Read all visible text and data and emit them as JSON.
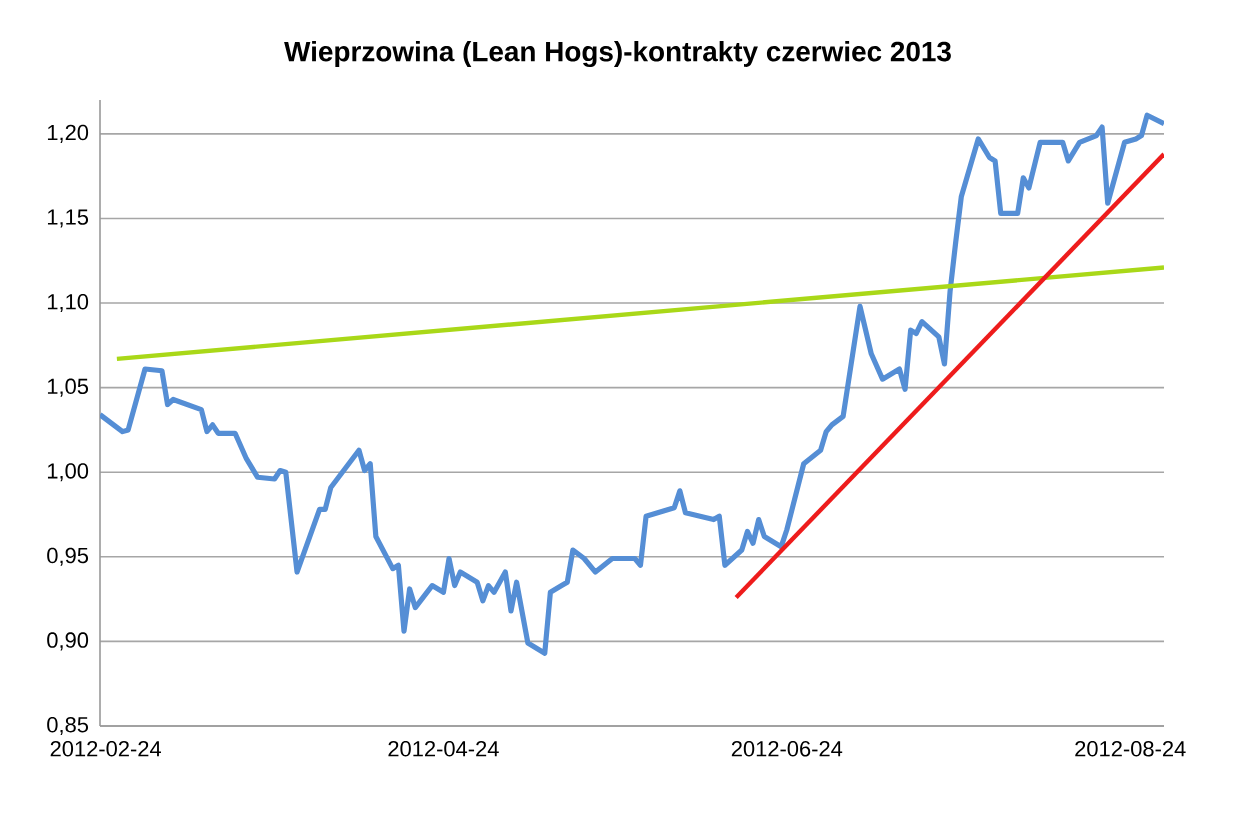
{
  "chart_data": {
    "type": "line",
    "title": "Wieprzowina (Lean Hogs)-kontrakty czerwiec 2013",
    "grid": "y",
    "xlim": [
      "2012-02-23",
      "2012-08-30"
    ],
    "xticks": [
      {
        "value": "2012-02-24",
        "label": "2012-02-24"
      },
      {
        "value": "2012-04-24",
        "label": "2012-04-24"
      },
      {
        "value": "2012-06-24",
        "label": "2012-06-24"
      },
      {
        "value": "2012-08-24",
        "label": "2012-08-24"
      }
    ],
    "ylim": [
      0.85,
      1.22
    ],
    "yticks": [
      {
        "value": 0.85,
        "label": "0,85"
      },
      {
        "value": 0.9,
        "label": "0,90"
      },
      {
        "value": 0.95,
        "label": "0,95"
      },
      {
        "value": 1.0,
        "label": "1,00"
      },
      {
        "value": 1.05,
        "label": "1,05"
      },
      {
        "value": 1.1,
        "label": "1,10"
      },
      {
        "value": 1.15,
        "label": "1,15"
      },
      {
        "value": 1.2,
        "label": "1,20"
      }
    ],
    "series": [
      {
        "color": "#558ed5",
        "x": [
          "2012-02-23",
          "2012-02-27",
          "2012-02-28",
          "2012-03-02",
          "2012-03-05",
          "2012-03-06",
          "2012-03-07",
          "2012-03-12",
          "2012-03-13",
          "2012-03-14",
          "2012-03-15",
          "2012-03-18",
          "2012-03-20",
          "2012-03-22",
          "2012-03-25",
          "2012-03-26",
          "2012-03-27",
          "2012-03-29",
          "2012-04-02",
          "2012-04-03",
          "2012-04-04",
          "2012-04-09",
          "2012-04-10",
          "2012-04-11",
          "2012-04-12",
          "2012-04-15",
          "2012-04-16",
          "2012-04-17",
          "2012-04-18",
          "2012-04-19",
          "2012-04-22",
          "2012-04-24",
          "2012-04-25",
          "2012-04-26",
          "2012-04-27",
          "2012-04-30",
          "2012-05-01",
          "2012-05-02",
          "2012-05-03",
          "2012-05-05",
          "2012-05-06",
          "2012-05-07",
          "2012-05-09",
          "2012-05-12",
          "2012-05-13",
          "2012-05-15",
          "2012-05-16",
          "2012-05-17",
          "2012-05-19",
          "2012-05-21",
          "2012-05-24",
          "2012-05-28",
          "2012-05-29",
          "2012-05-30",
          "2012-06-04",
          "2012-06-05",
          "2012-06-06",
          "2012-06-11",
          "2012-06-12",
          "2012-06-13",
          "2012-06-16",
          "2012-06-17",
          "2012-06-18",
          "2012-06-19",
          "2012-06-20",
          "2012-06-23",
          "2012-06-24",
          "2012-06-27",
          "2012-06-30",
          "2012-07-01",
          "2012-07-02",
          "2012-07-04",
          "2012-07-07",
          "2012-07-09",
          "2012-07-11",
          "2012-07-14",
          "2012-07-15",
          "2012-07-16",
          "2012-07-17",
          "2012-07-18",
          "2012-07-21",
          "2012-07-22",
          "2012-07-23",
          "2012-07-24",
          "2012-07-25",
          "2012-07-28",
          "2012-07-30",
          "2012-07-31",
          "2012-08-01",
          "2012-08-04",
          "2012-08-05",
          "2012-08-06",
          "2012-08-08",
          "2012-08-12",
          "2012-08-13",
          "2012-08-15",
          "2012-08-18",
          "2012-08-19",
          "2012-08-20",
          "2012-08-23",
          "2012-08-25",
          "2012-08-26",
          "2012-08-27",
          "2012-08-30"
        ],
        "values": [
          1.034,
          1.024,
          1.025,
          1.061,
          1.06,
          1.04,
          1.043,
          1.037,
          1.024,
          1.028,
          1.023,
          1.023,
          1.008,
          0.997,
          0.996,
          1.001,
          1.0,
          0.941,
          0.978,
          0.978,
          0.991,
          1.013,
          1.001,
          1.005,
          0.962,
          0.943,
          0.945,
          0.906,
          0.931,
          0.92,
          0.933,
          0.929,
          0.949,
          0.933,
          0.941,
          0.935,
          0.924,
          0.933,
          0.929,
          0.941,
          0.918,
          0.935,
          0.899,
          0.893,
          0.929,
          0.933,
          0.935,
          0.954,
          0.949,
          0.941,
          0.949,
          0.949,
          0.945,
          0.974,
          0.979,
          0.989,
          0.976,
          0.972,
          0.974,
          0.945,
          0.954,
          0.965,
          0.958,
          0.972,
          0.962,
          0.956,
          0.966,
          1.005,
          1.013,
          1.024,
          1.028,
          1.033,
          1.098,
          1.07,
          1.055,
          1.061,
          1.049,
          1.084,
          1.082,
          1.089,
          1.08,
          1.064,
          1.107,
          1.136,
          1.163,
          1.197,
          1.186,
          1.184,
          1.153,
          1.153,
          1.174,
          1.168,
          1.195,
          1.195,
          1.184,
          1.195,
          1.199,
          1.204,
          1.159,
          1.195,
          1.197,
          1.199,
          1.211,
          1.206
        ]
      },
      {
        "type": "line",
        "color": "#a9d818",
        "x": [
          "2012-02-26",
          "2012-08-30"
        ],
        "values": [
          1.067,
          1.121
        ]
      },
      {
        "type": "line",
        "color": "#ee1c1c",
        "x": [
          "2012-06-15",
          "2012-08-30"
        ],
        "values": [
          0.926,
          1.188
        ]
      }
    ]
  }
}
